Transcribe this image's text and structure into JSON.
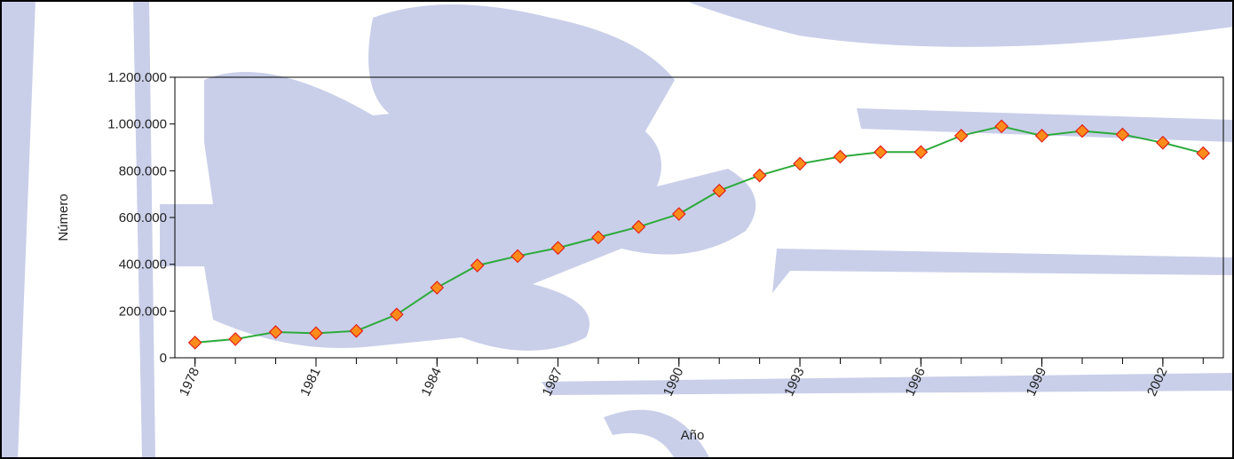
{
  "chart_data": {
    "type": "line",
    "x_label": "Año",
    "y_label": "Número",
    "x": [
      1978,
      1979,
      1980,
      1981,
      1982,
      1983,
      1984,
      1985,
      1986,
      1987,
      1988,
      1989,
      1990,
      1991,
      1992,
      1993,
      1994,
      1995,
      1996,
      1997,
      1998,
      1999,
      2000,
      2001,
      2002,
      2003
    ],
    "series": [
      {
        "color": "#2eaa3c",
        "marker_color": "#ff8c1a",
        "marker_edge": "#e0221a",
        "values": [
          65000,
          80000,
          110000,
          105000,
          115000,
          185000,
          300000,
          395000,
          435000,
          470000,
          515000,
          560000,
          615000,
          715000,
          780000,
          830000,
          860000,
          880000,
          880000,
          950000,
          990000,
          950000,
          970000,
          955000,
          920000,
          875000
        ]
      }
    ],
    "xlim": [
      1977.5,
      2003.5
    ],
    "xticks": [
      1978,
      1981,
      1984,
      1987,
      1990,
      1993,
      1996,
      1999,
      2002
    ],
    "ylim": [
      0,
      1200000
    ],
    "yticks": [
      0,
      {
        "value": 200000,
        "label": "200.000"
      },
      {
        "value": 400000,
        "label": "400.000"
      },
      {
        "value": 600000,
        "label": "600.000"
      },
      {
        "value": 800000,
        "label": "800.000"
      },
      {
        "value": 1000000,
        "label": "1.000.000"
      },
      {
        "value": 1200000,
        "label": "1.200.000"
      }
    ]
  }
}
